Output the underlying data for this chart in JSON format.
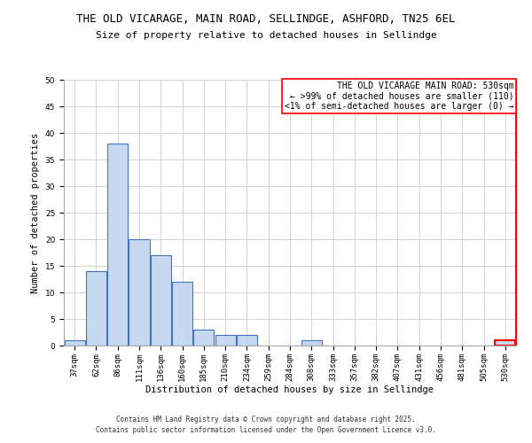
{
  "title1": "THE OLD VICARAGE, MAIN ROAD, SELLINDGE, ASHFORD, TN25 6EL",
  "title2": "Size of property relative to detached houses in Sellindge",
  "xlabel": "Distribution of detached houses by size in Sellindge",
  "ylabel": "Number of detached properties",
  "bar_labels": [
    "37sqm",
    "62sqm",
    "86sqm",
    "111sqm",
    "136sqm",
    "160sqm",
    "185sqm",
    "210sqm",
    "234sqm",
    "259sqm",
    "284sqm",
    "308sqm",
    "333sqm",
    "357sqm",
    "382sqm",
    "407sqm",
    "431sqm",
    "456sqm",
    "481sqm",
    "505sqm",
    "530sqm"
  ],
  "bar_values": [
    1,
    14,
    38,
    20,
    17,
    12,
    3,
    2,
    2,
    0,
    0,
    1,
    0,
    0,
    0,
    0,
    0,
    0,
    0,
    0,
    1
  ],
  "bar_color": "#c6d9f0",
  "bar_edge_color": "#4472c4",
  "highlight_index": 20,
  "highlight_color": "#ff0000",
  "ylim": [
    0,
    50
  ],
  "yticks": [
    0,
    5,
    10,
    15,
    20,
    25,
    30,
    35,
    40,
    45,
    50
  ],
  "annotation_title": "THE OLD VICARAGE MAIN ROAD: 530sqm",
  "annotation_line1": "← >99% of detached houses are smaller (110)",
  "annotation_line2": "<1% of semi-detached houses are larger (0) →",
  "footer": "Contains HM Land Registry data © Crown copyright and database right 2025.\nContains public sector information licensed under the Open Government Licence v3.0.",
  "title_fontsize": 9,
  "subtitle_fontsize": 8,
  "axis_fontsize": 7.5,
  "tick_fontsize": 6.5,
  "annotation_fontsize": 7,
  "footer_fontsize": 5.5
}
